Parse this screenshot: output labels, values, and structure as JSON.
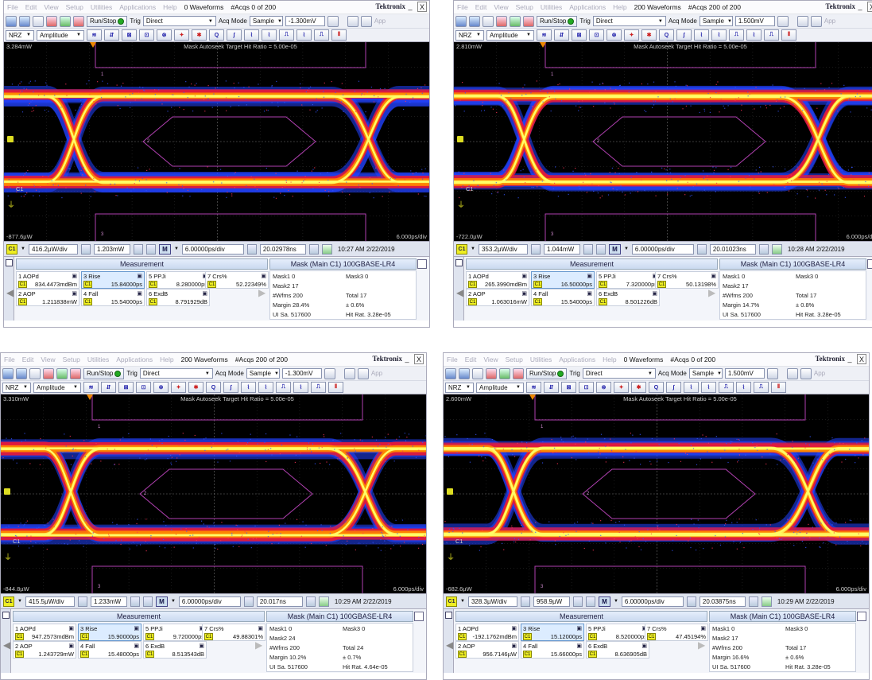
{
  "menu": [
    "File",
    "Edit",
    "View",
    "Setup",
    "Utilities",
    "Applications",
    "Help"
  ],
  "brand": "Tektronix",
  "window_buttons": {
    "minimize": "_",
    "close": "X"
  },
  "toolbar": {
    "run_stop": "Run/Stop",
    "trig": "Trig",
    "trig_mode": "Direct",
    "acq_mode_label": "Acq Mode",
    "acq_mode": "Sample",
    "app": "App"
  },
  "toolbar2": {
    "nrz": "NRZ",
    "amplitude": "Amplitude"
  },
  "panels": [
    {
      "waveforms": "0 Waveforms",
      "acqs": "#Acqs  0 of 200",
      "level": "-1.300mV",
      "y_top": "3.284mW",
      "y_bot": "-877.6µW",
      "x_scale": "6.000ps/div",
      "autoseek": "Mask Autoseek Target Hit Ratio = 5.00e-05",
      "vdiv": "416.2µW/div",
      "offset": "1.203mW",
      "m": "M",
      "hdiv": "6.00000ps/div",
      "pos": "20.02978ns",
      "time": "10:27 AM 2/22/2019",
      "meas_title": "Measurement",
      "mask_title": "Mask (Main  C1) 100GBASE-LR4",
      "meas": [
        {
          "name": "1 AOPd",
          "val": "834.4473mdBm"
        },
        {
          "name": "3 Rise",
          "val": "15.84000ps"
        },
        {
          "name": "5 PPJi",
          "val": "8.280000ps"
        },
        {
          "name": "7 Crs%",
          "val": "52.22349%"
        },
        {
          "name": "2 AOP",
          "val": "1.211838mW"
        },
        {
          "name": "4 Fall",
          "val": "15.54000ps"
        },
        {
          "name": "6 ExdB",
          "val": "8.791929dB"
        }
      ],
      "mask": {
        "mask1": "Mask1  0",
        "mask2": "Mask2  17",
        "mask3": "Mask3  0",
        "wfms": "#Wfms  200",
        "total": "Total  17",
        "margin": "Margin  28.4%",
        "pm": "±  0.6%",
        "ui": "UI Sa.  517600",
        "hitrat": "Hit Rat.  3.28e-05"
      }
    },
    {
      "waveforms": "200 Waveforms",
      "acqs": "#Acqs  200 of 200",
      "level": "1.500mV",
      "y_top": "2.810mW",
      "y_bot": "-722.0µW",
      "x_scale": "6.000ps/div",
      "autoseek": "Mask Autoseek Target Hit Ratio = 5.00e-05",
      "vdiv": "353.2µW/div",
      "offset": "1.044mW",
      "m": "M",
      "hdiv": "6.00000ps/div",
      "pos": "20.01023ns",
      "time": "10:28 AM 2/22/2019",
      "meas_title": "Measurement",
      "mask_title": "Mask (Main  C1) 100GBASE-LR4",
      "meas": [
        {
          "name": "1 AOPd",
          "val": "265.3990mdBm"
        },
        {
          "name": "3 Rise",
          "val": "16.50000ps"
        },
        {
          "name": "5 PPJi",
          "val": "7.320000ps"
        },
        {
          "name": "7 Crs%",
          "val": "50.13198%"
        },
        {
          "name": "2 AOP",
          "val": "1.063016mW"
        },
        {
          "name": "4 Fall",
          "val": "15.54000ps"
        },
        {
          "name": "6 ExdB",
          "val": "8.501226dB"
        }
      ],
      "mask": {
        "mask1": "Mask1  0",
        "mask2": "Mask2  17",
        "mask3": "Mask3  0",
        "wfms": "#Wfms  200",
        "total": "Total  17",
        "margin": "Margin  14.7%",
        "pm": "±  0.8%",
        "ui": "UI Sa.  517600",
        "hitrat": "Hit Rat.  3.28e-05"
      }
    },
    {
      "waveforms": "200 Waveforms",
      "acqs": "#Acqs  200 of 200",
      "level": "-1.300mV",
      "y_top": "3.310mW",
      "y_bot": "-844.8µW",
      "x_scale": "6.000ps/div",
      "autoseek": "Mask Autoseek Target Hit Ratio = 5.00e-05",
      "vdiv": "415.5µW/div",
      "offset": "1.233mW",
      "m": "M",
      "hdiv": "6.00000ps/div",
      "pos": "20.017ns",
      "time": "10:29 AM 2/22/2019",
      "meas_title": "Measurement",
      "mask_title": "Mask (Main  C1) 100GBASE-LR4",
      "meas": [
        {
          "name": "1 AOPd",
          "val": "947.2573mdBm"
        },
        {
          "name": "3 Rise",
          "val": "15.90000ps"
        },
        {
          "name": "5 PPJi",
          "val": "9.720000ps"
        },
        {
          "name": "7 Crs%",
          "val": "49.88301%"
        },
        {
          "name": "2 AOP",
          "val": "1.243729mW"
        },
        {
          "name": "4 Fall",
          "val": "15.48000ps"
        },
        {
          "name": "6 ExdB",
          "val": "8.513543dB"
        }
      ],
      "mask": {
        "mask1": "Mask1  0",
        "mask2": "Mask2  24",
        "mask3": "Mask3  0",
        "wfms": "#Wfms  200",
        "total": "Total  24",
        "margin": "Margin  10.2%",
        "pm": "±  0.7%",
        "ui": "UI Sa.  517600",
        "hitrat": "Hit Rat.  4.64e-05"
      }
    },
    {
      "waveforms": "0 Waveforms",
      "acqs": "#Acqs  0 of 200",
      "level": "1.500mV",
      "y_top": "2.600mW",
      "y_bot": "-682.6µW",
      "x_scale": "6.000ps/div",
      "autoseek": "Mask Autoseek Target Hit Ratio = 5.00e-05",
      "vdiv": "328.3µW/div",
      "offset": "958.9µW",
      "m": "M",
      "hdiv": "6.00000ps/div",
      "pos": "20.03875ns",
      "time": "10:29 AM 2/22/2019",
      "meas_title": "Measurement",
      "mask_title": "Mask (Main  C1) 100GBASE-LR4",
      "meas": [
        {
          "name": "1 AOPd",
          "val": "-192.1762mdBm"
        },
        {
          "name": "3 Rise",
          "val": "15.12000ps"
        },
        {
          "name": "5 PPJi",
          "val": "8.520000ps"
        },
        {
          "name": "7 Crs%",
          "val": "47.45194%"
        },
        {
          "name": "2 AOP",
          "val": "956.7146µW"
        },
        {
          "name": "4 Fall",
          "val": "15.66000ps"
        },
        {
          "name": "6 ExdB",
          "val": "8.636905dB"
        }
      ],
      "mask": {
        "mask1": "Mask1  0",
        "mask2": "Mask2  17",
        "mask3": "Mask3  0",
        "wfms": "#Wfms  200",
        "total": "Total  17",
        "margin": "Margin  16.6%",
        "pm": "±  0.6%",
        "ui": "UI Sa.  517600",
        "hitrat": "Hit Rat.  3.28e-05"
      }
    }
  ],
  "labels": {
    "c1": "C1",
    "ch": "C1",
    "mask_marker_1": "1",
    "mask_marker_2": "2",
    "mask_marker_3": "3"
  },
  "colors": {
    "trace_hot": "#ffff66",
    "trace_mid": "#ff8800",
    "trace_cool": "#e01a3c",
    "trace_cold": "#2244ff",
    "mask": "#b040b0",
    "channel": "#eeee22"
  }
}
